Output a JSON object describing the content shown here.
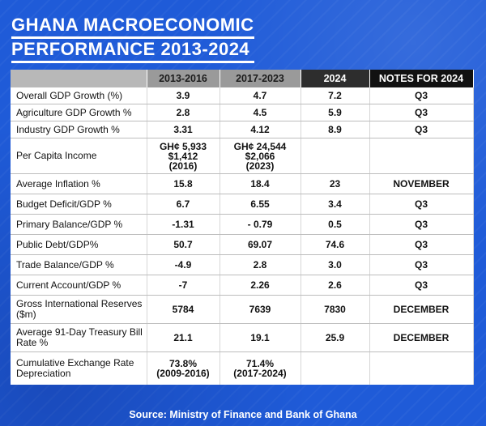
{
  "title": {
    "line1": "GHANA MACROECONOMIC",
    "line2": "PERFORMANCE 2013-2024"
  },
  "source": "Source: Ministry of Finance and Bank of Ghana",
  "chart_data": {
    "type": "table",
    "title": "GHANA MACROECONOMIC PERFORMANCE 2013-2024",
    "columns": [
      "",
      "2013-2016",
      "2017-2023",
      "2024",
      "NOTES FOR 2024"
    ],
    "rows": [
      {
        "label": "Overall GDP Growth (%)",
        "c1": [
          "3.9"
        ],
        "c2": [
          "4.7"
        ],
        "c3": "7.2",
        "c4": "Q3"
      },
      {
        "label": "Agriculture GDP Growth %",
        "c1": [
          "2.8"
        ],
        "c2": [
          "4.5"
        ],
        "c3": "5.9",
        "c4": "Q3"
      },
      {
        "label": "Industry GDP Growth %",
        "c1": [
          "3.31"
        ],
        "c2": [
          "4.12"
        ],
        "c3": "8.9",
        "c4": "Q3"
      },
      {
        "label": "Per Capita Income",
        "c1": [
          "GH¢ 5,933",
          "$1,412",
          "(2016)"
        ],
        "c2": [
          "GH¢ 24,544",
          "$2,066",
          "(2023)"
        ],
        "c3": "",
        "c4": ""
      },
      {
        "label": "Average Inflation %",
        "c1": [
          "15.8"
        ],
        "c2": [
          "18.4"
        ],
        "c3": "23",
        "c4": "NOVEMBER"
      },
      {
        "label": "Budget Deficit/GDP %",
        "c1": [
          "6.7"
        ],
        "c2": [
          "6.55"
        ],
        "c3": "3.4",
        "c4": "Q3"
      },
      {
        "label": "Primary Balance/GDP %",
        "c1": [
          "-1.31"
        ],
        "c2": [
          "- 0.79"
        ],
        "c3": "0.5",
        "c4": "Q3"
      },
      {
        "label": "Public Debt/GDP%",
        "c1": [
          "50.7"
        ],
        "c2": [
          "69.07"
        ],
        "c3": "74.6",
        "c4": "Q3"
      },
      {
        "label": "Trade Balance/GDP %",
        "c1": [
          "-4.9"
        ],
        "c2": [
          "2.8"
        ],
        "c3": "3.0",
        "c4": "Q3"
      },
      {
        "label": "Current Account/GDP %",
        "c1": [
          "-7"
        ],
        "c2": [
          "2.26"
        ],
        "c3": "2.6",
        "c4": "Q3"
      },
      {
        "label": "Gross International Reserves ($m)",
        "c1": [
          "5784"
        ],
        "c2": [
          "7639"
        ],
        "c3": "7830",
        "c4": "DECEMBER"
      },
      {
        "label": "Average 91-Day Treasury Bill Rate %",
        "c1": [
          "21.1"
        ],
        "c2": [
          "19.1"
        ],
        "c3": "25.9",
        "c4": "DECEMBER"
      },
      {
        "label": "Cumulative Exchange Rate Depreciation",
        "c1": [
          "73.8%",
          "(2009-2016)"
        ],
        "c2": [
          "71.4%",
          "(2017-2024)"
        ],
        "c3": "",
        "c4": ""
      }
    ]
  }
}
